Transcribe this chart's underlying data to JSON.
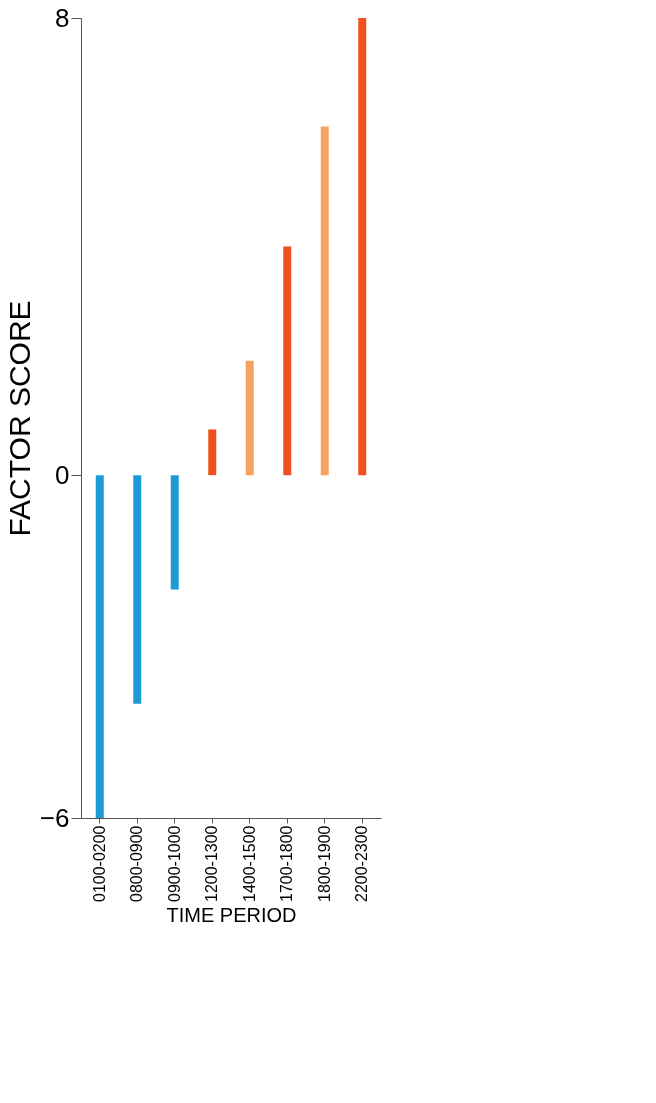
{
  "chart_data": {
    "type": "bar",
    "xlabel": "TIME PERIOD",
    "ylabel": "FACTOR SCORE",
    "categories": [
      "0100-0200",
      "0800-0900",
      "0900-1000",
      "1200-1300",
      "1400-1500",
      "1700-1800",
      "1800-1900",
      "2200-2300"
    ],
    "values": [
      -6.0,
      -4.0,
      -2.0,
      0.8,
      2.0,
      4.0,
      6.1,
      8.0
    ],
    "colors": [
      "#1e9ad6",
      "#1e9ad6",
      "#1e9ad6",
      "#f0501e",
      "#f8a060",
      "#f0501e",
      "#f8a060",
      "#f0501e"
    ],
    "ylim": [
      -6,
      8
    ],
    "yticks": [
      -6,
      0,
      8
    ]
  }
}
